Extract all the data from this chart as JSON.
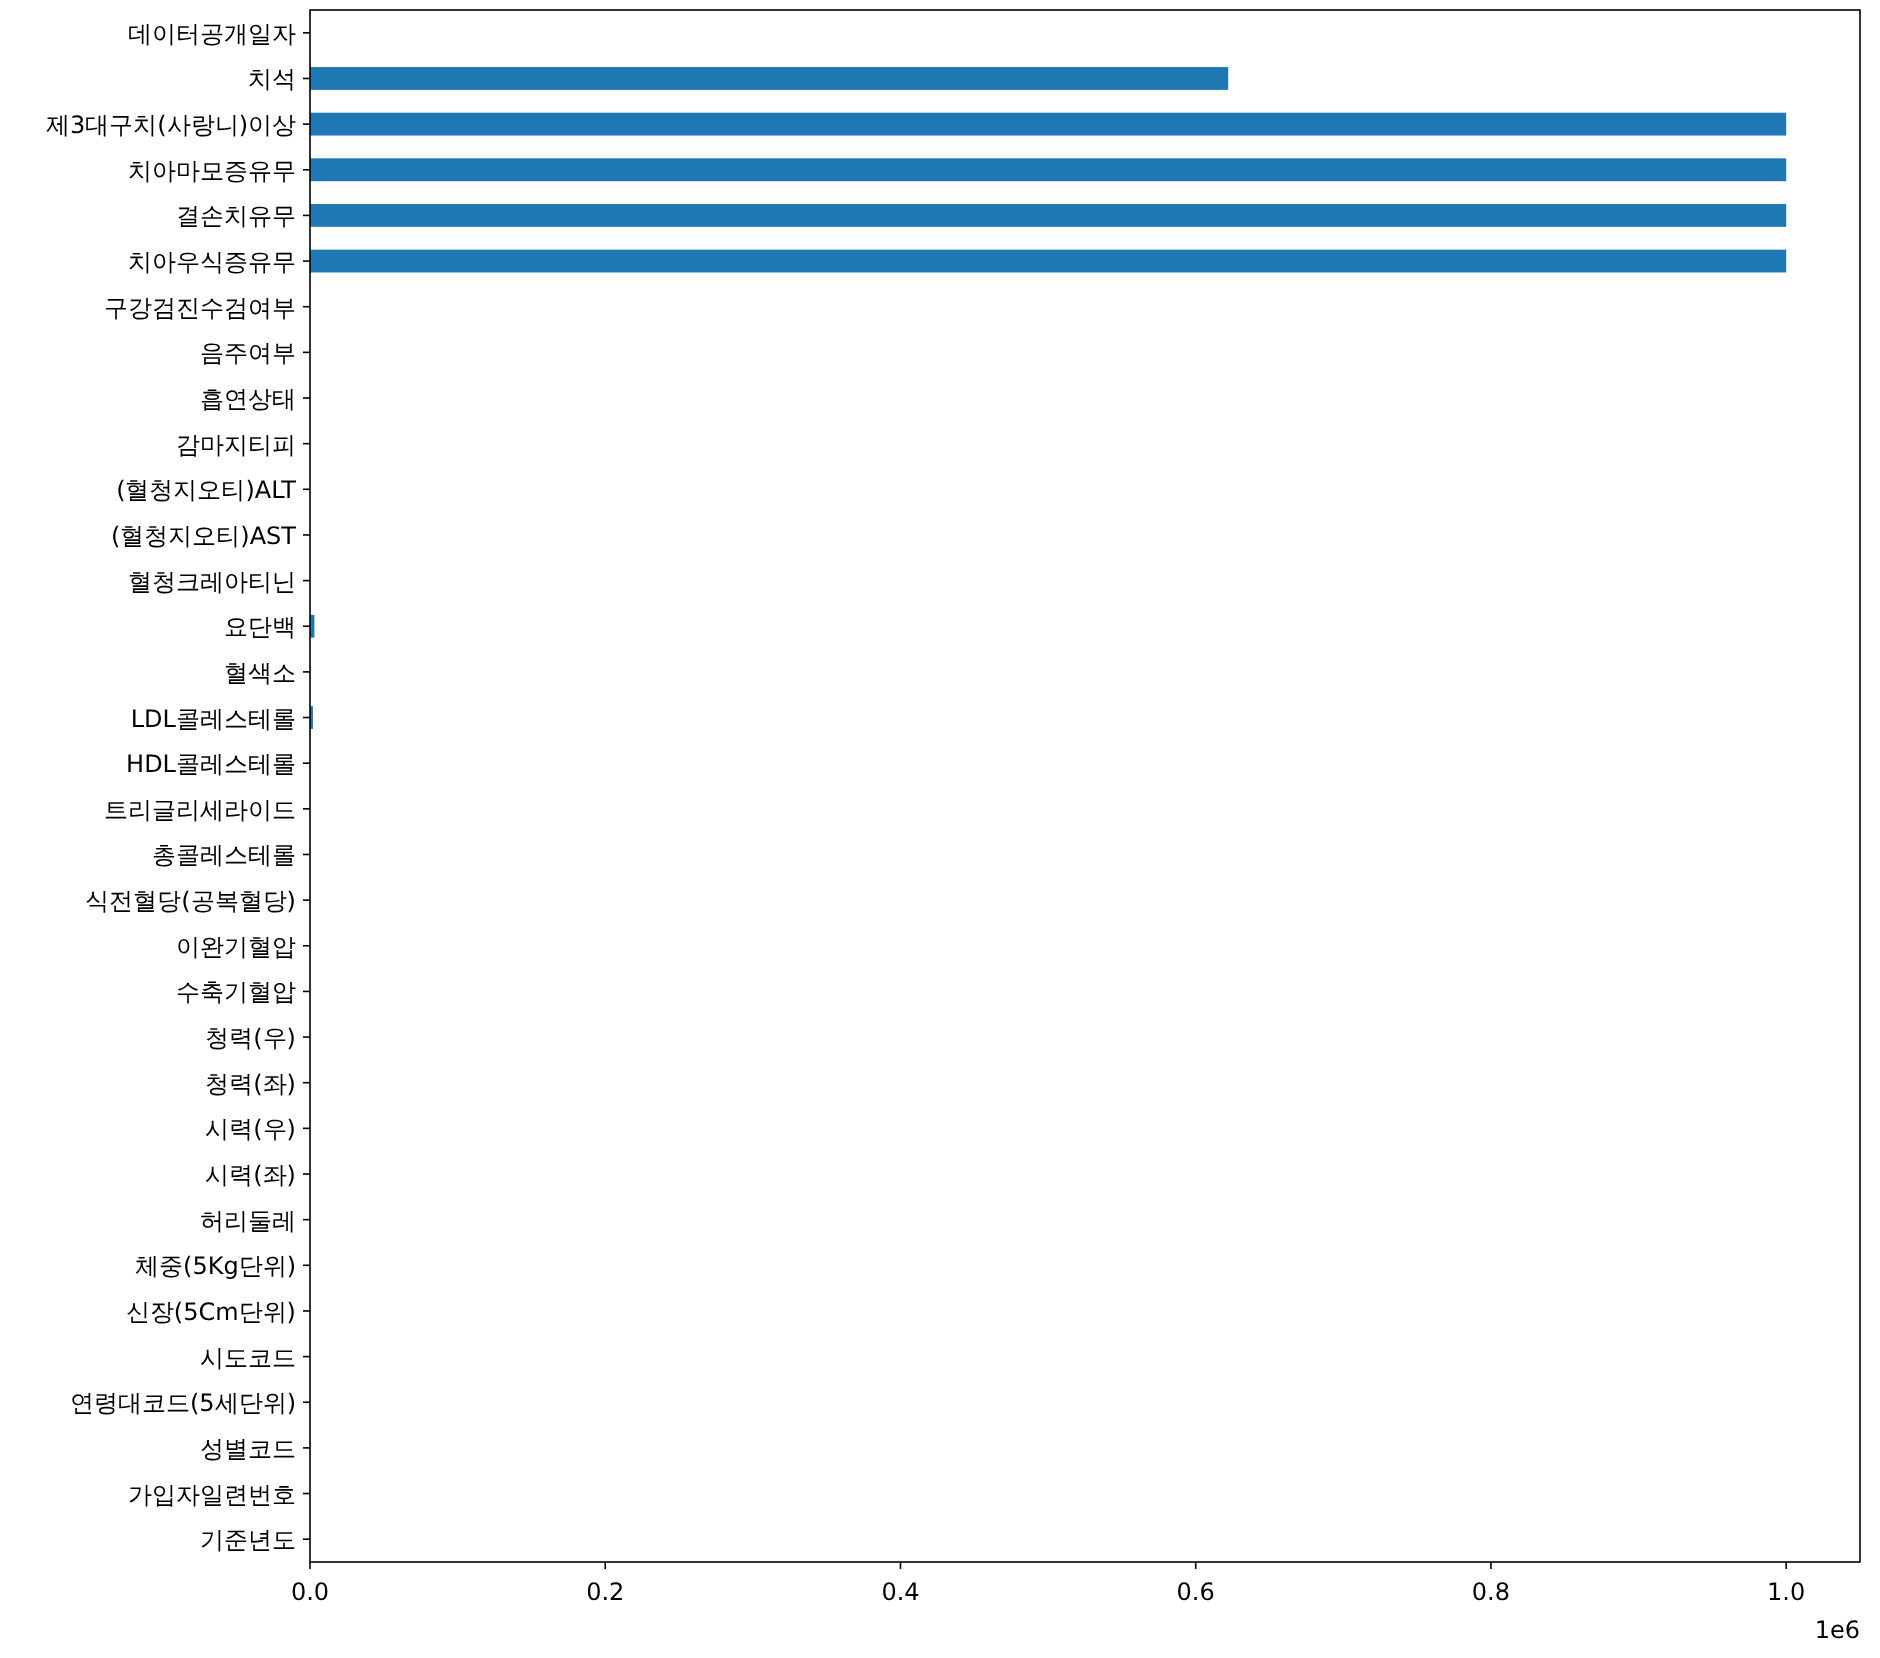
{
  "chart_data": {
    "type": "bar",
    "orientation": "horizontal",
    "categories": [
      "데이터공개일자",
      "치석",
      "제3대구치(사랑니)이상",
      "치아마모증유무",
      "결손치유무",
      "치아우식증유무",
      "구강검진수검여부",
      "음주여부",
      "흡연상태",
      "감마지티피",
      "(혈청지오티)ALT",
      "(혈청지오티)AST",
      "혈청크레아티닌",
      "요단백",
      "혈색소",
      "LDL콜레스테롤",
      "HDL콜레스테롤",
      "트리글리세라이드",
      "총콜레스테롤",
      "식전혈당(공복혈당)",
      "이완기혈압",
      "수축기혈압",
      "청력(우)",
      "청력(좌)",
      "시력(우)",
      "시력(좌)",
      "허리둘레",
      "체중(5Kg단위)",
      "신장(5Cm단위)",
      "시도코드",
      "연령대코드(5세단위)",
      "성별코드",
      "가입자일련번호",
      "기준년도"
    ],
    "values": [
      0,
      0.622,
      1.0,
      1.0,
      1.0,
      1.0,
      0,
      0,
      0,
      0,
      0,
      0,
      0,
      0.003,
      0,
      0.002,
      0,
      0,
      0,
      0,
      0,
      0,
      0,
      0,
      0,
      0,
      0,
      0,
      0,
      0,
      0,
      0,
      0,
      0
    ],
    "color": "#1f77b4",
    "xlim": [
      0,
      1.05
    ],
    "xticks": [
      {
        "value": 0,
        "label": "0.0"
      },
      0.2,
      0.4,
      0.6,
      0.8,
      {
        "value": 1,
        "label": "1.0"
      }
    ],
    "annotations": [
      "1e6"
    ]
  }
}
